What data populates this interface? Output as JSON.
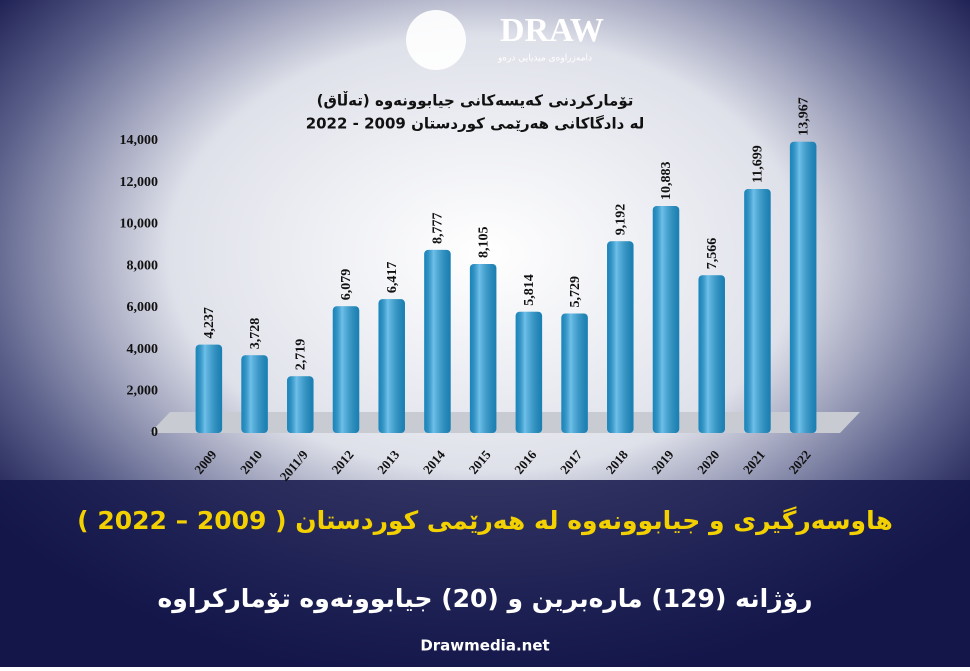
{
  "header": {
    "logo": "DRAW",
    "tagline": "دامەزراوەی میدیایی درەو"
  },
  "chart_data": {
    "type": "bar",
    "title": "تۆمارکردنی کەیسەکانی جیابوونەوە (تەڵاق)",
    "subtitle": "لە دادگاکانی هەرێمی کوردستان 2009 - 2022",
    "categories": [
      "2009",
      "2010",
      "2011/9",
      "2012",
      "2013",
      "2014",
      "2015",
      "2016",
      "2017",
      "2018",
      "2019",
      "2020",
      "2021",
      "2022"
    ],
    "values": [
      4237,
      3728,
      2719,
      6079,
      6417,
      8777,
      8105,
      5814,
      5729,
      9192,
      10883,
      7566,
      11699,
      13967
    ],
    "value_labels": [
      "4,237",
      "3,728",
      "2,719",
      "6,079",
      "6,417",
      "8,777",
      "8,105",
      "5,814",
      "5,729",
      "9,192",
      "10,883",
      "7,566",
      "11,699",
      "13,967"
    ],
    "color": "#1f9ede",
    "ylim": [
      0,
      14000
    ],
    "yticks": [
      0,
      {
        "value": 2000,
        "label": "2,000"
      },
      {
        "value": 4000,
        "label": "4,000"
      },
      {
        "value": 6000,
        "label": "6,000"
      },
      {
        "value": 8000,
        "label": "8,000"
      },
      {
        "value": 10000,
        "label": "10,000"
      },
      {
        "value": 12000,
        "label": "12,000"
      },
      {
        "value": 14000,
        "label": "14,000"
      }
    ],
    "grid": false
  },
  "headline": "هاوسەرگیری و جیابوونەوە لە هەرێمی کوردستان ( 2009 – 2022 )",
  "subheadline": "رۆژانە (129) مارەبرین و (20) جیابوونەوە تۆمارکراوە",
  "footer": "Drawmedia.net"
}
